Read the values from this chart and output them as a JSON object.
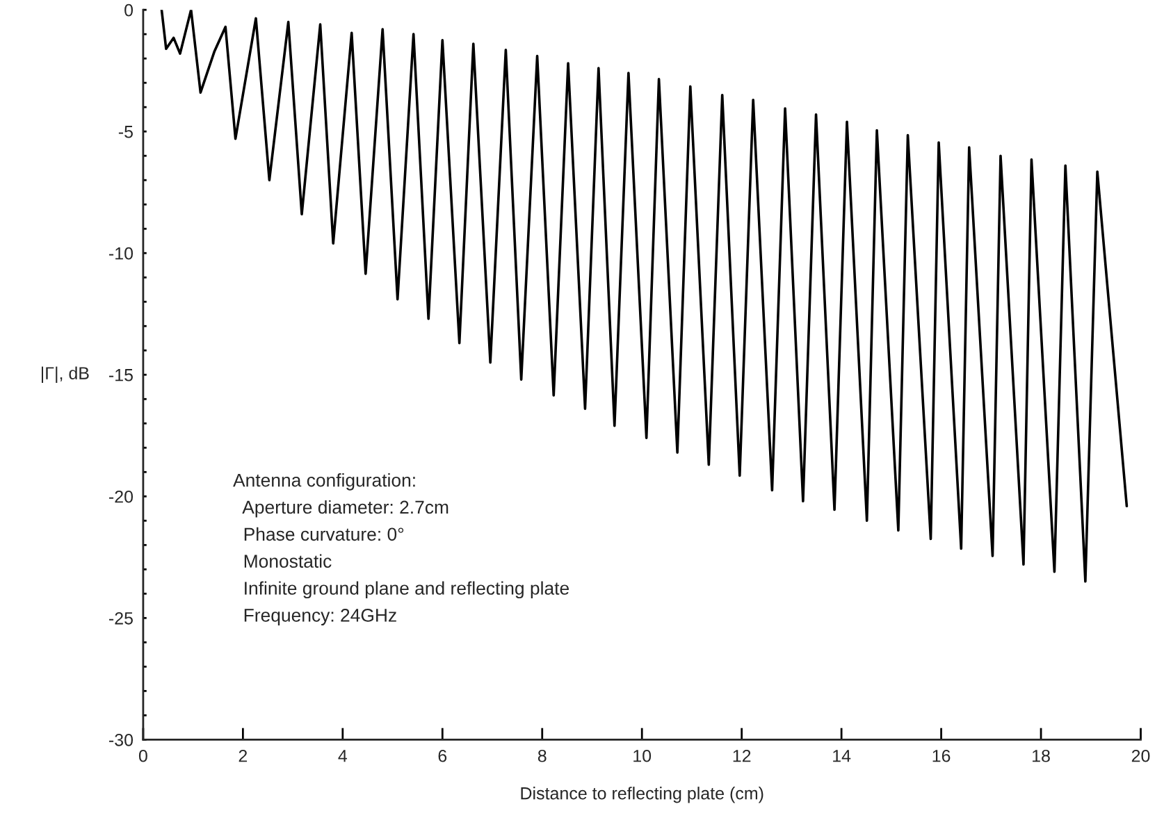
{
  "chart_data": {
    "type": "line",
    "xlabel": "Distance to reflecting plate (cm)",
    "ylabel": "|Γ|, dB",
    "series": [
      {
        "color": "#000000",
        "x": [
          0.37,
          0.46,
          0.61,
          0.74,
          0.96,
          1.15,
          1.43,
          1.65,
          1.85,
          2.26,
          2.53,
          2.91,
          3.18,
          3.55,
          3.81,
          4.18,
          4.46,
          4.8,
          5.1,
          5.42,
          5.72,
          6.0,
          6.34,
          6.62,
          6.96,
          7.27,
          7.58,
          7.9,
          8.23,
          8.52,
          8.86,
          9.13,
          9.45,
          9.73,
          10.09,
          10.34,
          10.71,
          10.97,
          11.34,
          11.61,
          11.96,
          12.23,
          12.61,
          12.87,
          13.23,
          13.49,
          13.86,
          14.11,
          14.51,
          14.71,
          15.14,
          15.33,
          15.79,
          15.95,
          16.4,
          16.56,
          17.03,
          17.19,
          17.65,
          17.81,
          18.27,
          18.49,
          18.89,
          19.13,
          19.72
        ],
        "values": [
          0,
          -1.6,
          -1.15,
          -1.8,
          0,
          -3.4,
          -1.7,
          -0.7,
          -5.3,
          -0.35,
          -7.0,
          -0.5,
          -8.4,
          -0.6,
          -9.6,
          -0.95,
          -10.85,
          -0.8,
          -11.9,
          -1.0,
          -12.7,
          -1.25,
          -13.7,
          -1.4,
          -14.5,
          -1.65,
          -15.2,
          -1.9,
          -15.85,
          -2.2,
          -16.4,
          -2.4,
          -17.1,
          -2.6,
          -17.6,
          -2.85,
          -18.2,
          -3.15,
          -18.7,
          -3.5,
          -19.15,
          -3.7,
          -19.75,
          -4.05,
          -20.2,
          -4.3,
          -20.55,
          -4.6,
          -21.0,
          -4.95,
          -21.4,
          -5.15,
          -21.75,
          -5.45,
          -22.15,
          -5.65,
          -22.45,
          -6.0,
          -22.8,
          -6.15,
          -23.1,
          -6.4,
          -23.5,
          -6.65,
          -20.4
        ]
      }
    ],
    "xlim": [
      0,
      20
    ],
    "xticks": [
      0,
      2,
      4,
      6,
      8,
      10,
      12,
      14,
      16,
      18,
      20
    ],
    "ylim": [
      -30,
      0
    ],
    "yticks": [
      -30,
      {
        "value": -29,
        "label": null
      },
      {
        "value": -28,
        "label": null
      },
      {
        "value": -27,
        "label": null
      },
      {
        "value": -26,
        "label": null
      },
      -25,
      {
        "value": -24,
        "label": null
      },
      {
        "value": -23,
        "label": null
      },
      {
        "value": -22,
        "label": null
      },
      {
        "value": -21,
        "label": null
      },
      -20,
      {
        "value": -19,
        "label": null
      },
      {
        "value": -18,
        "label": null
      },
      {
        "value": -17,
        "label": null
      },
      {
        "value": -16,
        "label": null
      },
      -15,
      {
        "value": -14,
        "label": null
      },
      {
        "value": -13,
        "label": null
      },
      {
        "value": -12,
        "label": null
      },
      {
        "value": -11,
        "label": null
      },
      -10,
      {
        "value": -9,
        "label": null
      },
      {
        "value": -8,
        "label": null
      },
      {
        "value": -7,
        "label": null
      },
      {
        "value": -6,
        "label": null
      },
      -5,
      {
        "value": -4,
        "label": null
      },
      {
        "value": -3,
        "label": null
      },
      {
        "value": -2,
        "label": null
      },
      {
        "value": -1,
        "label": null
      },
      0
    ],
    "grid": false,
    "legend": false,
    "annotations": [
      "Antenna configuration:",
      "  Aperture diameter: 2.7cm",
      "  Phase curvature: 0°",
      "  Monostatic",
      "  Infinite ground plane and reflecting plate",
      "  Frequency: 24GHz"
    ]
  }
}
